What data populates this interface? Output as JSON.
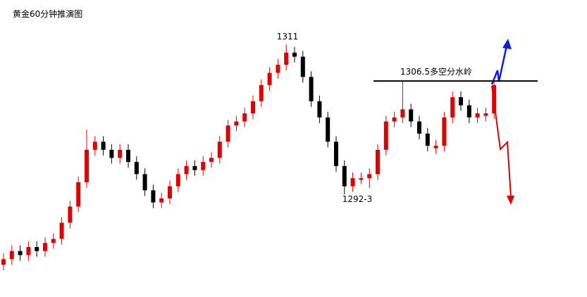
{
  "chart_data": {
    "type": "candlestick",
    "title": "黄金60分钟推演图",
    "ylim": [
      1280,
      1316.5
    ],
    "up_color": "#e00000",
    "down_color": "#000000",
    "open": [
      1283.8,
      1284.5,
      1285.5,
      1285,
      1286,
      1285.5,
      1286.5,
      1287,
      1289,
      1291,
      1294,
      1298,
      1299,
      1298,
      1297,
      1298,
      1296.5,
      1295,
      1293,
      1291.5,
      1292,
      1293.5,
      1295,
      1296,
      1295.5,
      1296.5,
      1297,
      1299,
      1301,
      1301.5,
      1302.5,
      1304,
      1306,
      1307.5,
      1308.5,
      1310,
      1309.5,
      1307,
      1304,
      1302,
      1299,
      1296,
      1293.5,
      1294.3,
      1294.5,
      1295,
      1298,
      1301.5,
      1302,
      1303,
      1301.5,
      1300,
      1298.2,
      1298.5,
      1302,
      1304.5,
      1303.5,
      1302,
      1302.2,
      1302.5
    ],
    "high": [
      1285.2,
      1286.2,
      1286.2,
      1286.7,
      1286.7,
      1287.2,
      1287.7,
      1289.7,
      1291.7,
      1294.7,
      1300.5,
      1299.7,
      1299.7,
      1298.7,
      1298.7,
      1298.7,
      1297.2,
      1295.7,
      1293.7,
      1292.7,
      1294.2,
      1295.7,
      1296.7,
      1296.7,
      1297.2,
      1297.7,
      1299.7,
      1301.7,
      1302.2,
      1303.2,
      1304.7,
      1306.7,
      1308.2,
      1309.2,
      1311,
      1310.7,
      1310.2,
      1307.7,
      1304.7,
      1302.7,
      1299.7,
      1296.7,
      1295.2,
      1295.2,
      1295.7,
      1298.7,
      1302.2,
      1302.7,
      1306.5,
      1303.7,
      1302.2,
      1300.7,
      1299.2,
      1302.7,
      1305.2,
      1305.2,
      1304.2,
      1303.2,
      1303.2,
      1306.8
    ],
    "low": [
      1283.1,
      1283.8,
      1284.3,
      1284.3,
      1284.8,
      1284.8,
      1285.8,
      1286.3,
      1288.3,
      1290.3,
      1293.3,
      1297.3,
      1297.3,
      1296.3,
      1296.3,
      1295.8,
      1294.3,
      1292.3,
      1290.8,
      1290.8,
      1291.3,
      1292.8,
      1294.3,
      1294.8,
      1294.8,
      1295.8,
      1296.3,
      1298.3,
      1300.3,
      1300.8,
      1301.8,
      1303.3,
      1305.3,
      1306.8,
      1307.8,
      1308.8,
      1306.3,
      1303.3,
      1301.3,
      1298.3,
      1295.3,
      1292.5,
      1292.8,
      1293.8,
      1293.3,
      1294.3,
      1297.3,
      1300.8,
      1301.3,
      1300.8,
      1299.3,
      1297.8,
      1297.5,
      1297.8,
      1301.3,
      1302.8,
      1301.3,
      1301.3,
      1301.5,
      1301.8
    ],
    "close": [
      1284.5,
      1285.5,
      1285,
      1286,
      1285.5,
      1286.5,
      1287,
      1289,
      1291,
      1294,
      1298,
      1299,
      1298,
      1297,
      1298,
      1296.5,
      1295,
      1293,
      1291.5,
      1292,
      1293.5,
      1295,
      1296,
      1295.5,
      1296.5,
      1297,
      1299,
      1301,
      1301.5,
      1302.5,
      1304,
      1306,
      1307.5,
      1308.5,
      1310,
      1309.5,
      1307,
      1304,
      1302,
      1299,
      1296,
      1293.5,
      1294.5,
      1294.5,
      1295,
      1298,
      1301.5,
      1302,
      1303,
      1301.5,
      1300,
      1298.5,
      1298.5,
      1302,
      1304.5,
      1303.5,
      1302,
      1302.5,
      1302.5,
      1306
    ],
    "annotations": [
      "1311",
      "1292-3"
    ],
    "level": {
      "value": 1306.5,
      "label": "1306.5多空分水岭"
    }
  }
}
